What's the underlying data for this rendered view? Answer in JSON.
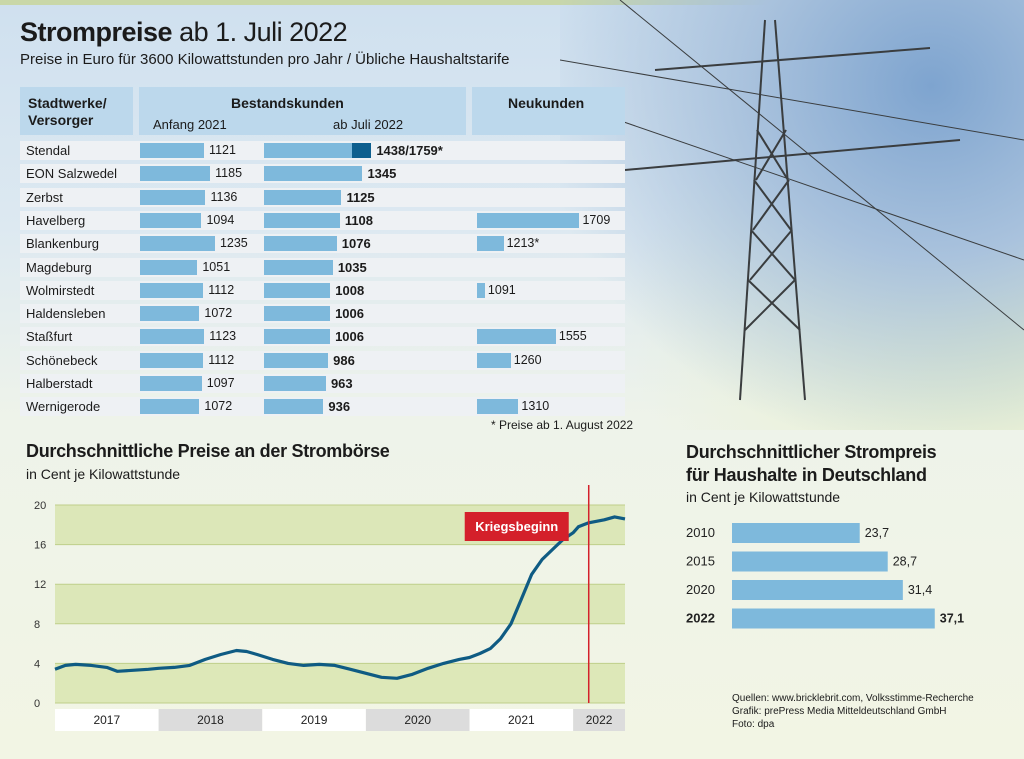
{
  "title": {
    "bold": "Strompreise",
    "rest": " ab 1. Juli 2022"
  },
  "subtitle": "Preise in Euro für 3600 Kilowattstunden pro Jahr / Übliche Haushaltstarife",
  "table": {
    "col_supplier": "Stadtwerke/\nVersorger",
    "col_existing": "Bestandskunden",
    "col_start2021": "Anfang 2021",
    "col_july2022": "ab Juli 2022",
    "col_new": "Neukunden",
    "rows": [
      {
        "city": "Stendal",
        "start2021": 1121,
        "july2022": 1438,
        "july2022_label": "1438/1759*",
        "new": null,
        "new_label": ""
      },
      {
        "city": "EON Salzwedel",
        "start2021": 1185,
        "july2022": 1345,
        "july2022_label": "1345",
        "new": null,
        "new_label": ""
      },
      {
        "city": "Zerbst",
        "start2021": 1136,
        "july2022": 1125,
        "july2022_label": "1125",
        "new": null,
        "new_label": ""
      },
      {
        "city": "Havelberg",
        "start2021": 1094,
        "july2022": 1108,
        "july2022_label": "1108",
        "new": 1709,
        "new_label": "1709"
      },
      {
        "city": "Blankenburg",
        "start2021": 1235,
        "july2022": 1076,
        "july2022_label": "1076",
        "new": 1213,
        "new_label": "1213*"
      },
      {
        "city": "Magdeburg",
        "start2021": 1051,
        "july2022": 1035,
        "july2022_label": "1035",
        "new": null,
        "new_label": ""
      },
      {
        "city": "Wolmirstedt",
        "start2021": 1112,
        "july2022": 1008,
        "july2022_label": "1008",
        "new": 1091,
        "new_label": "1091"
      },
      {
        "city": "Haldensleben",
        "start2021": 1072,
        "july2022": 1006,
        "july2022_label": "1006",
        "new": null,
        "new_label": ""
      },
      {
        "city": "Staßfurt",
        "start2021": 1123,
        "july2022": 1006,
        "july2022_label": "1006",
        "new": 1555,
        "new_label": "1555"
      },
      {
        "city": "Schönebeck",
        "start2021": 1112,
        "july2022": 986,
        "july2022_label": "986",
        "new": 1260,
        "new_label": "1260"
      },
      {
        "city": "Halberstadt",
        "start2021": 1097,
        "july2022": 963,
        "july2022_label": "963",
        "new": null,
        "new_label": ""
      },
      {
        "city": "Wernigerode",
        "start2021": 1072,
        "july2022": 936,
        "july2022_label": "936",
        "new": 1310,
        "new_label": "1310"
      }
    ],
    "footnote": "* Preise ab 1. August 2022"
  },
  "chart_data": [
    {
      "type": "line",
      "title": "Durchschnittliche Preise an der Strombörse",
      "ylabel": "in Cent je Kilowattstunde",
      "ylim": [
        0,
        20
      ],
      "yticks": [
        0,
        4,
        8,
        12,
        16,
        20
      ],
      "xticks": [
        "2017",
        "2018",
        "2019",
        "2020",
        "2021",
        "2022"
      ],
      "xlim": [
        2017,
        2022.5
      ],
      "x": [
        2017.0,
        2017.1,
        2017.2,
        2017.35,
        2017.5,
        2017.6,
        2017.75,
        2017.9,
        2018.0,
        2018.15,
        2018.3,
        2018.45,
        2018.6,
        2018.75,
        2018.85,
        2018.95,
        2019.1,
        2019.25,
        2019.4,
        2019.55,
        2019.7,
        2019.85,
        2020.0,
        2020.15,
        2020.3,
        2020.45,
        2020.6,
        2020.75,
        2020.9,
        2021.0,
        2021.1,
        2021.2,
        2021.3,
        2021.4,
        2021.5,
        2021.6,
        2021.7,
        2021.8,
        2021.9,
        2022.0,
        2022.05,
        2022.1,
        2022.15,
        2022.2,
        2022.3,
        2022.4,
        2022.5
      ],
      "y": [
        3.4,
        3.8,
        3.9,
        3.8,
        3.6,
        3.2,
        3.3,
        3.4,
        3.5,
        3.6,
        3.8,
        4.4,
        4.9,
        5.3,
        5.2,
        4.9,
        4.4,
        4.0,
        3.8,
        3.9,
        3.8,
        3.4,
        3.0,
        2.6,
        2.5,
        2.9,
        3.5,
        4.0,
        4.4,
        4.6,
        5.0,
        5.5,
        6.5,
        8.0,
        10.5,
        13.0,
        14.5,
        15.5,
        16.5,
        17.2,
        17.8,
        18.0,
        18.2,
        18.3,
        18.5,
        18.8,
        18.6
      ],
      "annotation": {
        "label": "Kriegsbeginn",
        "x": 2022.15
      }
    },
    {
      "type": "bar",
      "title": "Durchschnittlicher Strompreis\nfür Haushalte in Deutschland",
      "ylabel": "in Cent je Kilowattstunde",
      "categories": [
        "2010",
        "2015",
        "2020",
        "2022"
      ],
      "values": [
        23.7,
        28.7,
        31.4,
        37.1
      ],
      "value_labels": [
        "23,7",
        "28,7",
        "31,4",
        "37,1"
      ]
    }
  ],
  "sources": {
    "line1": "Quellen: www.bricklebrit.com, Volksstimme-Recherche",
    "line2": "Grafik: prePress Media Mitteldeutschland GmbH",
    "line3": "Foto: dpa"
  },
  "colors": {
    "bar": "#7eb9dc",
    "highlight": "#0e5f8e",
    "line": "#0f5b83",
    "red": "#d4202a",
    "band": "#d6e3a8"
  }
}
